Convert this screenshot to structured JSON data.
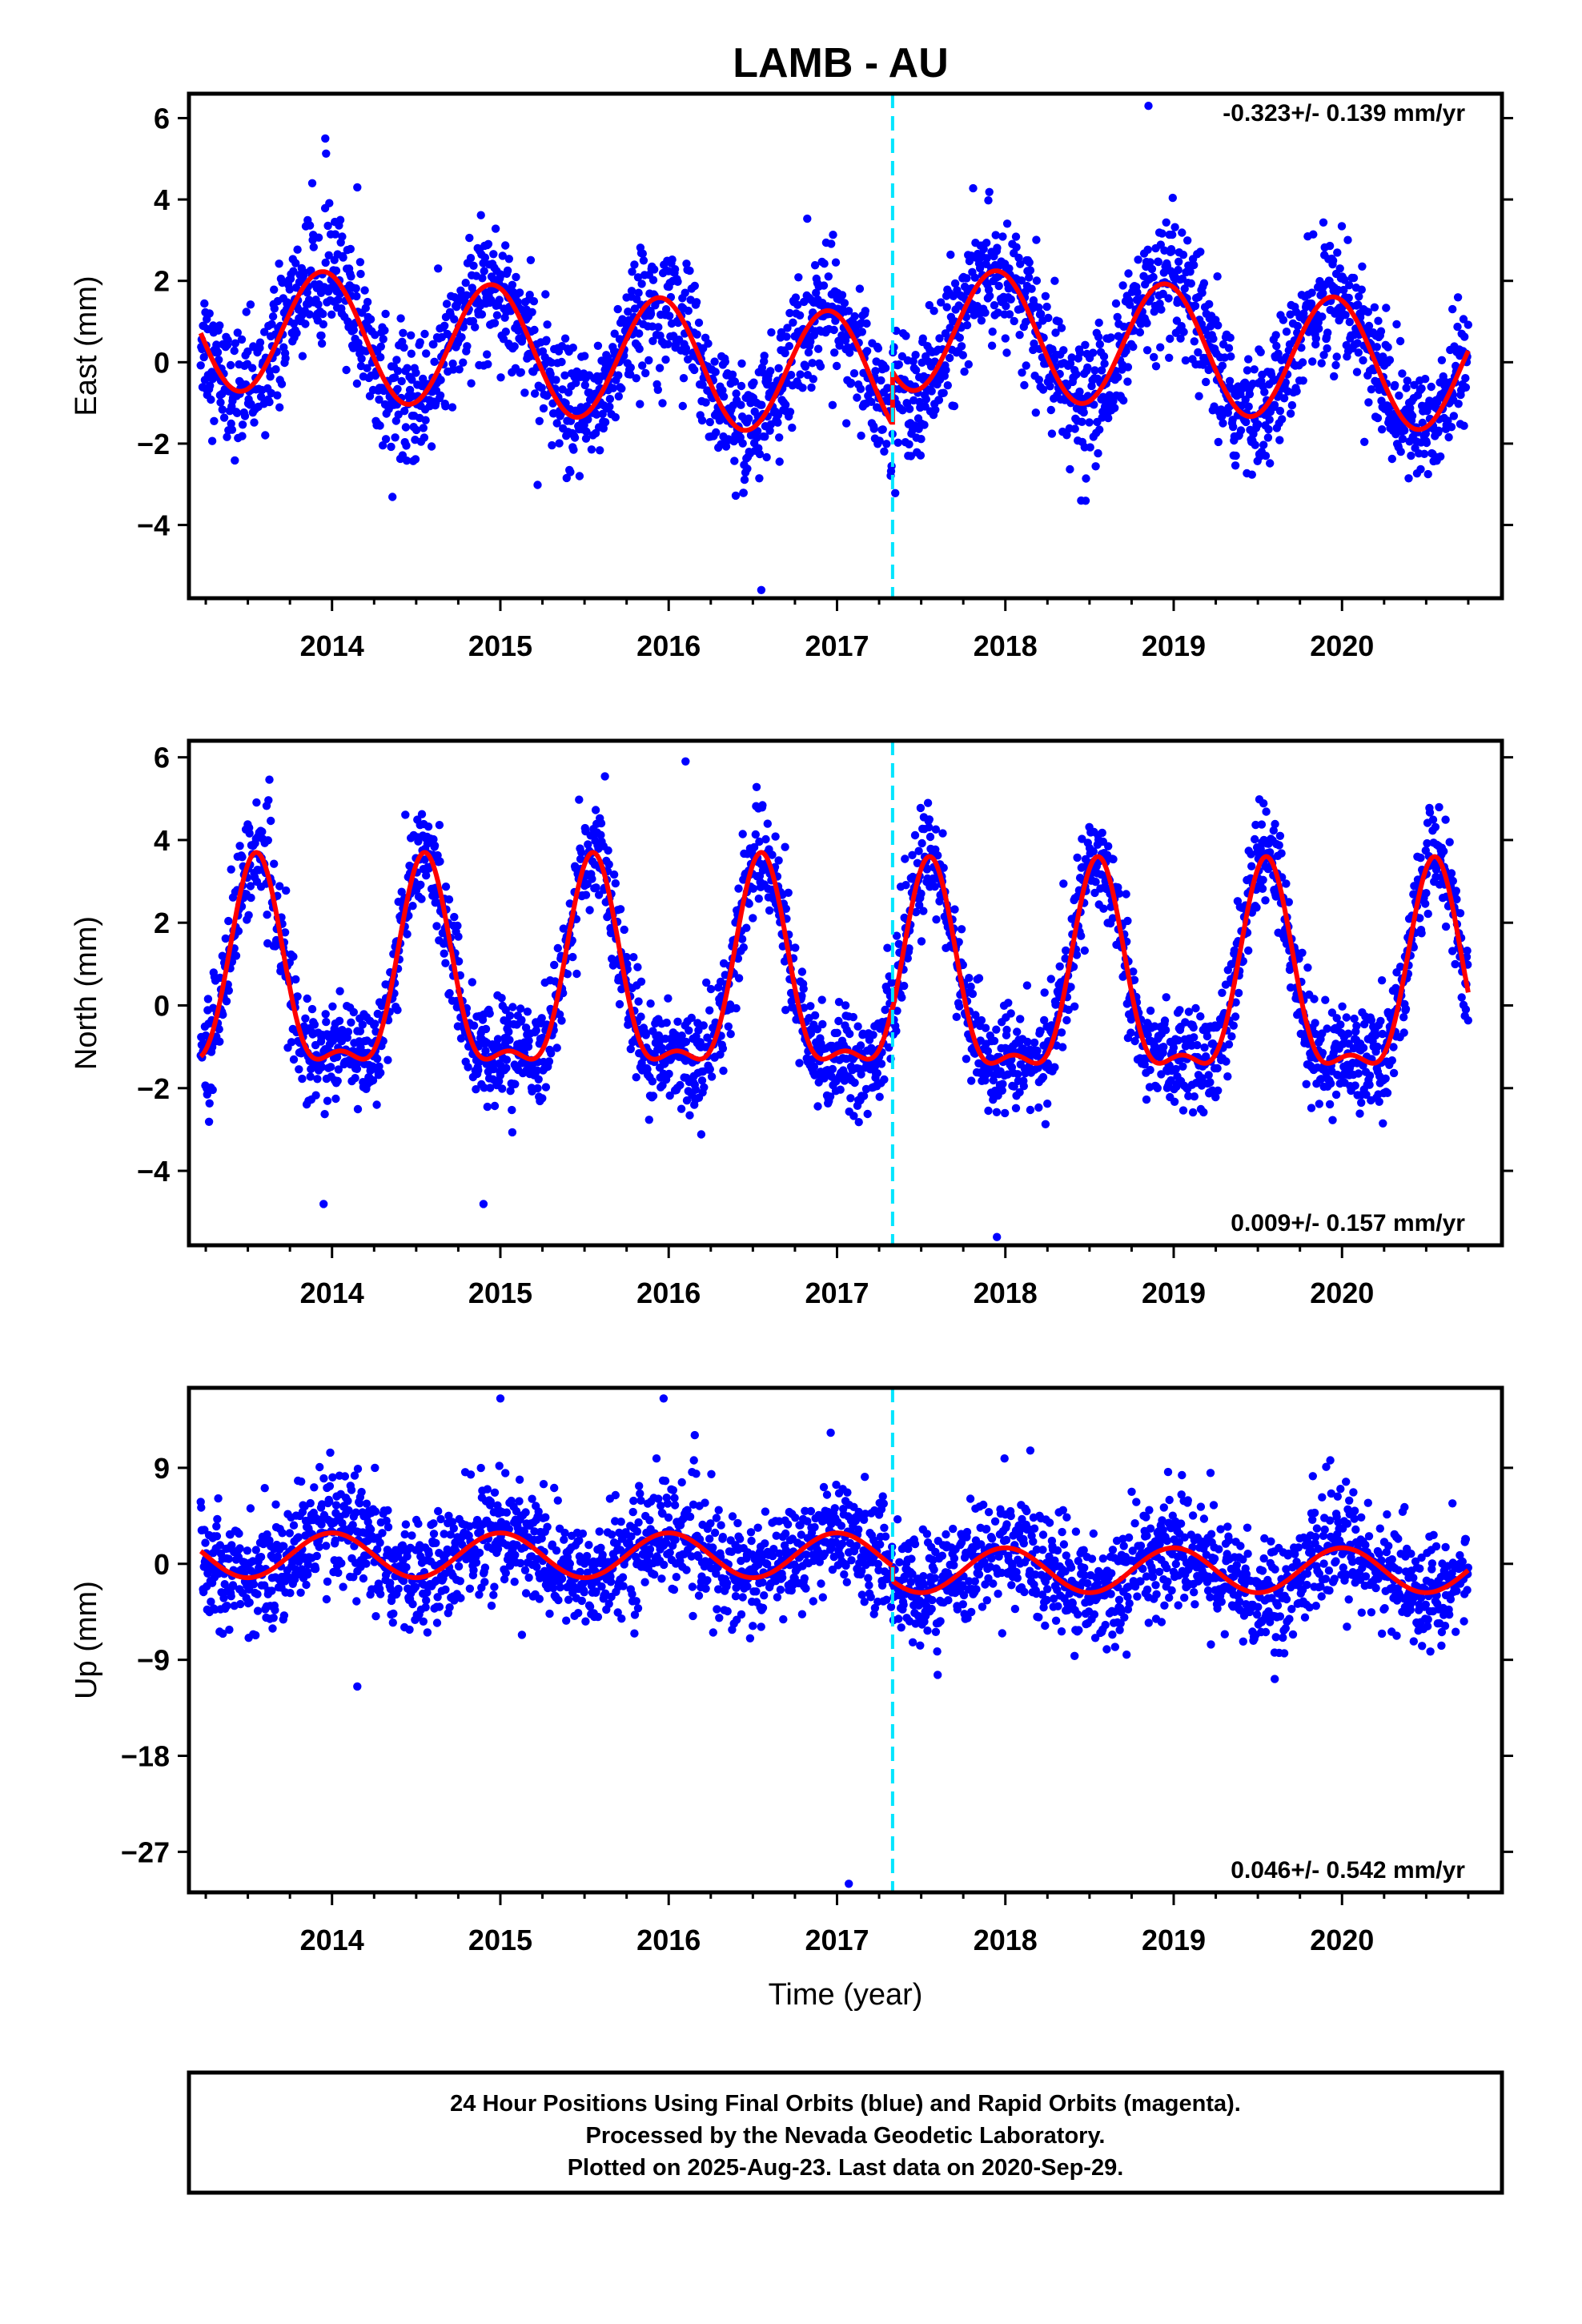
{
  "title": "LAMB - AU",
  "footer": {
    "line1": "24 Hour Positions Using Final Orbits (blue) and Rapid Orbits (magenta).",
    "line2": "Processed by the Nevada Geodetic Laboratory.",
    "line3": "Plotted on 2025-Aug-23. Last data on 2020-Sep-29."
  },
  "colors": {
    "points": "#0000ff",
    "model": "#ff0000",
    "event_line": "#00e5ff"
  },
  "chart_data": [
    {
      "type": "scatter",
      "name": "east",
      "ylabel": "East (mm)",
      "xlabel": "",
      "rate_label": "-0.323+/- 0.139 mm/yr",
      "rate_position": "top-right",
      "xlim": [
        2013.15,
        2020.95
      ],
      "ylim": [
        -5.8,
        6.6
      ],
      "yticks": [
        -4,
        -2,
        0,
        2,
        4,
        6
      ],
      "xticks": [
        2014,
        2015,
        2016,
        2017,
        2018,
        2019,
        2020
      ],
      "event_x": 2017.33,
      "model": {
        "offset_before": -0.3,
        "offset_after": 1.0,
        "annual_amp": 1.55,
        "annual_peak": 0.95,
        "trend_before": -0.32,
        "trend_after": -0.32,
        "noise": 0.9
      },
      "outliers": [
        {
          "x": 2013.96,
          "y": 5.5
        },
        {
          "x": 2014.15,
          "y": 4.3
        },
        {
          "x": 2016.55,
          "y": -5.6
        },
        {
          "x": 2018.85,
          "y": 6.3
        },
        {
          "x": 2018.45,
          "y": -3.4
        }
      ]
    },
    {
      "type": "scatter",
      "name": "north",
      "ylabel": "North (mm)",
      "xlabel": "",
      "rate_label": "0.009+/- 0.157 mm/yr",
      "rate_position": "bottom-right",
      "xlim": [
        2013.15,
        2020.95
      ],
      "ylim": [
        -5.8,
        6.4
      ],
      "yticks": [
        -4,
        -2,
        0,
        2,
        4,
        6
      ],
      "xticks": [
        2014,
        2015,
        2016,
        2017,
        2018,
        2019,
        2020
      ],
      "event_x": 2017.33,
      "model": {
        "offset_before": 0.4,
        "offset_after": 0.3,
        "annual_amp": 2.4,
        "annual_peak": 0.55,
        "semi_amp": 0.9,
        "semi_peak": 0.05,
        "trend_before": 0.0,
        "trend_after": 0.0,
        "noise": 0.75
      },
      "outliers": [
        {
          "x": 2016.1,
          "y": 5.9
        },
        {
          "x": 2013.95,
          "y": -4.8
        },
        {
          "x": 2014.9,
          "y": -4.8
        },
        {
          "x": 2017.95,
          "y": -5.6
        }
      ]
    },
    {
      "type": "scatter",
      "name": "up",
      "ylabel": "Up (mm)",
      "xlabel": "Time (year)",
      "rate_label": "0.046+/- 0.542 mm/yr",
      "rate_position": "bottom-right",
      "xlim": [
        2013.15,
        2020.95
      ],
      "ylim": [
        -30.8,
        16.5
      ],
      "yticks": [
        -27,
        -18,
        -9,
        0,
        9
      ],
      "xticks": [
        2014,
        2015,
        2016,
        2017,
        2018,
        2019,
        2020
      ],
      "event_x": 2017.33,
      "model": {
        "offset_before": 0.8,
        "offset_after": -0.6,
        "annual_amp": 2.1,
        "annual_peak": 0.0,
        "trend_before": 0.0,
        "trend_after": 0.0,
        "noise": 3.1
      },
      "outliers": [
        {
          "x": 2015.0,
          "y": 15.5
        },
        {
          "x": 2015.97,
          "y": 15.5
        },
        {
          "x": 2017.07,
          "y": -30.0
        },
        {
          "x": 2014.15,
          "y": -11.5
        },
        {
          "x": 2019.6,
          "y": -10.8
        }
      ]
    }
  ]
}
